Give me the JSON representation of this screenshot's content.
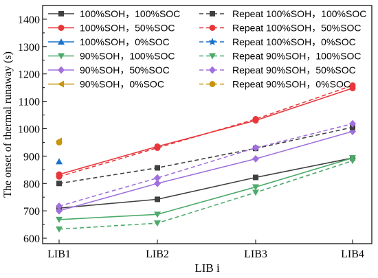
{
  "chart_data": {
    "type": "line",
    "title": "",
    "xlabel": "LIB i",
    "ylabel": "The onset of thermal runaway (s)",
    "categories": [
      "LIB1",
      "LIB2",
      "LIB3",
      "LIB4"
    ],
    "ylim": [
      580,
      1450
    ],
    "yticks": [
      600,
      700,
      800,
      900,
      1000,
      1100,
      1200,
      1300,
      1400
    ],
    "legend_position": "top",
    "series": [
      {
        "name": "100%SOH，100%SOC",
        "color": "#404040",
        "marker": "square",
        "dashed": false,
        "values": [
          710,
          742,
          822,
          893
        ]
      },
      {
        "name": "100%SOH，50%SOC",
        "color": "#e8363a",
        "marker": "circle",
        "dashed": false,
        "values": [
          833,
          935,
          1030,
          1148
        ]
      },
      {
        "name": "100%SOH，0%SOC",
        "color": "#1a73c9",
        "marker": "triangle-up",
        "dashed": false,
        "values": [
          880,
          null,
          null,
          null
        ]
      },
      {
        "name": "90%SOH，100%SOC",
        "color": "#4caa6a",
        "marker": "triangle-down",
        "dashed": false,
        "values": [
          668,
          687,
          787,
          893
        ]
      },
      {
        "name": "90%SOH，50%SOC",
        "color": "#a070dc",
        "marker": "diamond",
        "dashed": false,
        "values": [
          700,
          800,
          890,
          990
        ]
      },
      {
        "name": "90%SOH，0%SOC",
        "color": "#c8950f",
        "marker": "triangle-left",
        "dashed": false,
        "values": [
          955,
          null,
          null,
          null
        ]
      },
      {
        "name": "Repeat 100%SOH，100%SOC",
        "color": "#404040",
        "marker": "square",
        "dashed": true,
        "values": [
          800,
          857,
          928,
          1005
        ]
      },
      {
        "name": "Repeat 100%SOH，50%SOC",
        "color": "#e8363a",
        "marker": "circle",
        "dashed": true,
        "values": [
          825,
          930,
          1035,
          1158
        ]
      },
      {
        "name": "Repeat 100%SOH，0%SOC",
        "color": "#1a73c9",
        "marker": "star",
        "dashed": true,
        "values": [
          null,
          null,
          null,
          null
        ]
      },
      {
        "name": "Repeat 90%SOH，100%SOC",
        "color": "#4caa6a",
        "marker": "triangle-down",
        "dashed": true,
        "values": [
          633,
          655,
          767,
          883
        ]
      },
      {
        "name": "Repeat 90%SOH，50%SOC",
        "color": "#a070dc",
        "marker": "diamond",
        "dashed": true,
        "values": [
          717,
          820,
          930,
          1018
        ]
      },
      {
        "name": "Repeat 90%SOH，0%SOC",
        "color": "#c8950f",
        "marker": "circle",
        "dashed": true,
        "values": [
          950,
          null,
          null,
          null
        ]
      }
    ]
  }
}
